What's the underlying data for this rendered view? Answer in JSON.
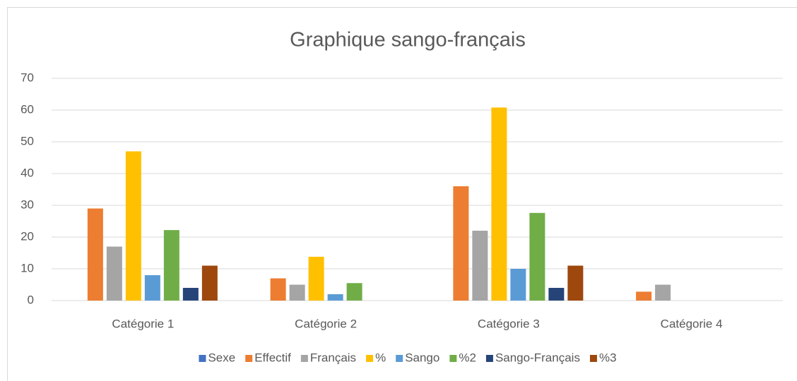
{
  "chart_data": {
    "type": "bar",
    "title": "Graphique sango-français",
    "categories": [
      "Catégorie 1",
      "Catégorie 2",
      "Catégorie 3",
      "Catégorie 4"
    ],
    "series": [
      {
        "name": "Sexe",
        "color": "#4472c4",
        "values": [
          null,
          null,
          null,
          null
        ]
      },
      {
        "name": "Effectif",
        "color": "#ed7d31",
        "values": [
          29,
          7,
          36,
          2.8
        ]
      },
      {
        "name": "Français",
        "color": "#a5a5a5",
        "values": [
          17,
          5,
          22,
          5
        ]
      },
      {
        "name": "%",
        "color": "#ffc000",
        "values": [
          47,
          13.8,
          60.8,
          null
        ]
      },
      {
        "name": "Sango",
        "color": "#5b9bd5",
        "values": [
          8,
          2,
          10,
          null
        ]
      },
      {
        "name": "%2",
        "color": "#70ad47",
        "values": [
          22.2,
          5.5,
          27.6,
          null
        ]
      },
      {
        "name": "Sango-Français",
        "color": "#264478",
        "values": [
          4,
          null,
          4,
          null
        ]
      },
      {
        "name": "%3",
        "color": "#9e480e",
        "values": [
          11,
          null,
          11,
          null
        ]
      }
    ],
    "ylim": [
      0,
      70
    ],
    "yticks": [
      0,
      10,
      20,
      30,
      40,
      50,
      60,
      70
    ],
    "grid": true,
    "legend": "bottom"
  }
}
